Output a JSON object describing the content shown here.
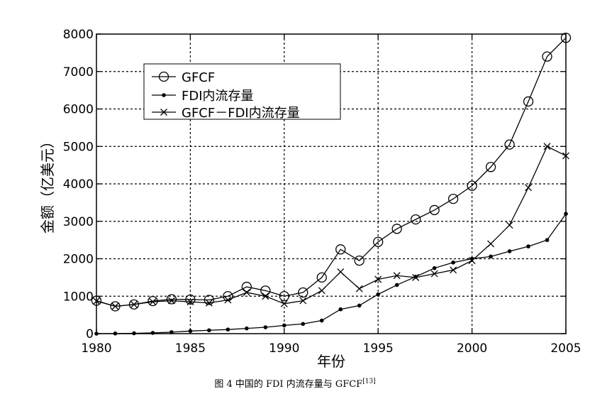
{
  "chart_data": {
    "type": "line",
    "title": "",
    "xlabel": "年份",
    "ylabel": "金额（亿美元）",
    "x": [
      1980,
      1981,
      1982,
      1983,
      1984,
      1985,
      1986,
      1987,
      1988,
      1989,
      1990,
      1991,
      1992,
      1993,
      1994,
      1995,
      1996,
      1997,
      1998,
      1999,
      2000,
      2001,
      2002,
      2003,
      2004,
      2005
    ],
    "xlim": [
      1980,
      2005
    ],
    "ylim": [
      0,
      8000
    ],
    "xticks": [
      "1980",
      "1985",
      "1990",
      "1995",
      "2000",
      "2005"
    ],
    "yticks": [
      "0",
      "1000",
      "2000",
      "3000",
      "4000",
      "5000",
      "6000",
      "7000",
      "8000"
    ],
    "grid": true,
    "legend_position": "top-left",
    "series": [
      {
        "name": "GFCF",
        "marker": "circle",
        "values": [
          880,
          730,
          780,
          870,
          920,
          910,
          900,
          1000,
          1250,
          1150,
          1000,
          1100,
          1500,
          2250,
          1950,
          2450,
          2800,
          3050,
          3300,
          3600,
          3950,
          4450,
          5050,
          6200,
          7400,
          7900
        ]
      },
      {
        "name": "FDI内流存量",
        "marker": "dot",
        "values": [
          0,
          5,
          10,
          20,
          40,
          70,
          90,
          110,
          140,
          170,
          220,
          260,
          350,
          650,
          750,
          1050,
          1300,
          1520,
          1750,
          1900,
          2000,
          2060,
          2200,
          2330,
          2500,
          3200
        ]
      },
      {
        "name": "GFCF－FDI内流存量",
        "marker": "x",
        "values": [
          870,
          730,
          780,
          850,
          880,
          850,
          820,
          900,
          1100,
          1000,
          800,
          880,
          1150,
          1650,
          1200,
          1450,
          1550,
          1500,
          1600,
          1700,
          1950,
          2400,
          2900,
          3900,
          5000,
          4750
        ]
      }
    ]
  },
  "caption": {
    "text": "图 4  中国的 FDI 内流存量与 GFCF",
    "ref": "[13]"
  }
}
